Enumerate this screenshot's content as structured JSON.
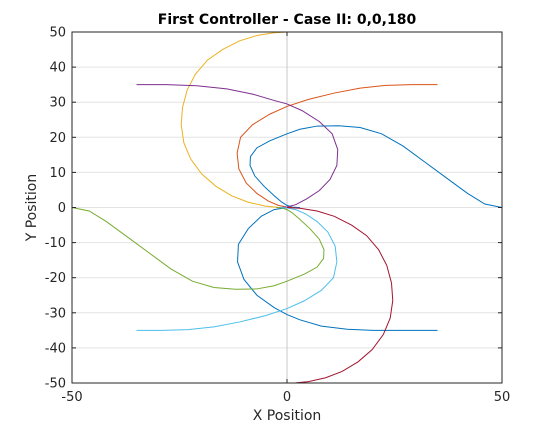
{
  "chart_data": {
    "type": "line",
    "title": "First Controller - Case II: 0,0,180",
    "xlabel": "X Position",
    "ylabel": "Y Position",
    "xlim": [
      -50,
      50
    ],
    "ylim": [
      -50,
      50
    ],
    "xticks": [
      -50,
      0,
      50
    ],
    "yticks": [
      -50,
      -40,
      -30,
      -20,
      -10,
      0,
      10,
      20,
      30,
      40,
      50
    ],
    "grid": true,
    "colors": {
      "blue": "#0072bd",
      "orange": "#d95319",
      "yellow": "#edb120",
      "purple": "#7e2f8e",
      "green": "#77ac30",
      "cyan": "#4dbeee",
      "maroon": "#a2142f"
    },
    "series": [
      {
        "color": "#0072bd",
        "points": [
          [
            50,
            0
          ],
          [
            46,
            1
          ],
          [
            42,
            4
          ],
          [
            37,
            8.5
          ],
          [
            32,
            13
          ],
          [
            27,
            17.5
          ],
          [
            22,
            21
          ],
          [
            17,
            22.8
          ],
          [
            12,
            23.3
          ],
          [
            7,
            23.2
          ],
          [
            3,
            22.3
          ],
          [
            0,
            21
          ],
          [
            -4,
            19
          ],
          [
            -7,
            17
          ],
          [
            -8.5,
            14.5
          ],
          [
            -8.6,
            12
          ],
          [
            -7.5,
            9
          ],
          [
            -5.3,
            6
          ],
          [
            -3,
            3.4
          ],
          [
            -1.2,
            1.5
          ],
          [
            0,
            0.6
          ],
          [
            1.2,
            0.1
          ],
          [
            2.5,
            0
          ]
        ]
      },
      {
        "color": "#0072bd",
        "points": [
          [
            3,
            0
          ],
          [
            0,
            0
          ],
          [
            -3,
            -0.6
          ],
          [
            -6,
            -2.5
          ],
          [
            -9,
            -6
          ],
          [
            -11.3,
            -10.5
          ],
          [
            -11.5,
            -15.5
          ],
          [
            -10,
            -20.5
          ],
          [
            -7,
            -25
          ],
          [
            -3,
            -28.5
          ],
          [
            0,
            -30.5
          ],
          [
            3,
            -32
          ],
          [
            8,
            -33.8
          ],
          [
            14,
            -34.7
          ],
          [
            20,
            -35
          ],
          [
            27,
            -35
          ],
          [
            35,
            -35
          ]
        ]
      },
      {
        "color": "#d95319",
        "points": [
          [
            35,
            35
          ],
          [
            29,
            35
          ],
          [
            23,
            34.8
          ],
          [
            17,
            34
          ],
          [
            11,
            32.6
          ],
          [
            5,
            30.8
          ],
          [
            0,
            28.8
          ],
          [
            -4,
            26.6
          ],
          [
            -8,
            23.6
          ],
          [
            -10.8,
            20
          ],
          [
            -11.6,
            15.5
          ],
          [
            -11.2,
            11
          ],
          [
            -9.5,
            7
          ],
          [
            -7,
            4
          ],
          [
            -4.3,
            1.8
          ],
          [
            -2,
            0.6
          ],
          [
            0,
            0.1
          ],
          [
            1.5,
            0
          ]
        ]
      },
      {
        "color": "#edb120",
        "points": [
          [
            0,
            50
          ],
          [
            -3,
            49.8
          ],
          [
            -7,
            49
          ],
          [
            -11,
            47.5
          ],
          [
            -15,
            45
          ],
          [
            -18.5,
            42
          ],
          [
            -21.3,
            38
          ],
          [
            -23.2,
            33.5
          ],
          [
            -24.3,
            28.5
          ],
          [
            -24.6,
            23.5
          ],
          [
            -24,
            18.5
          ],
          [
            -22.4,
            13.8
          ],
          [
            -19.8,
            9.5
          ],
          [
            -16.5,
            6
          ],
          [
            -12.8,
            3.3
          ],
          [
            -9,
            1.5
          ],
          [
            -5,
            0.4
          ],
          [
            -2,
            0.05
          ],
          [
            0,
            0
          ]
        ]
      },
      {
        "color": "#7e2f8e",
        "points": [
          [
            -35,
            35
          ],
          [
            -28,
            35
          ],
          [
            -21,
            34.7
          ],
          [
            -14,
            33.8
          ],
          [
            -8,
            32.3
          ],
          [
            -3,
            30.5
          ],
          [
            0,
            29.5
          ],
          [
            3.5,
            27.6
          ],
          [
            7.5,
            24.5
          ],
          [
            10.5,
            21
          ],
          [
            11.8,
            16.5
          ],
          [
            11.6,
            12
          ],
          [
            10,
            8
          ],
          [
            7.5,
            4.8
          ],
          [
            4.5,
            2.4
          ],
          [
            2,
            0.8
          ],
          [
            0,
            0.15
          ],
          [
            -1.5,
            0
          ]
        ]
      },
      {
        "color": "#77ac30",
        "points": [
          [
            -50,
            0
          ],
          [
            -46,
            -1
          ],
          [
            -42,
            -4
          ],
          [
            -37,
            -8.5
          ],
          [
            -32,
            -13
          ],
          [
            -27,
            -17.5
          ],
          [
            -22,
            -21
          ],
          [
            -17,
            -22.8
          ],
          [
            -12,
            -23.3
          ],
          [
            -7,
            -23.2
          ],
          [
            -3,
            -22.3
          ],
          [
            0,
            -21
          ],
          [
            4,
            -19
          ],
          [
            7,
            -17
          ],
          [
            8.5,
            -14.5
          ],
          [
            8.6,
            -12
          ],
          [
            7.5,
            -9
          ],
          [
            5.3,
            -6
          ],
          [
            3,
            -3.4
          ],
          [
            1.2,
            -1.5
          ],
          [
            0,
            -0.6
          ],
          [
            -1.2,
            -0.1
          ],
          [
            -2.5,
            0
          ]
        ]
      },
      {
        "color": "#4dbeee",
        "points": [
          [
            -35,
            -35
          ],
          [
            -29,
            -35
          ],
          [
            -23,
            -34.8
          ],
          [
            -17,
            -34
          ],
          [
            -11,
            -32.6
          ],
          [
            -5,
            -30.8
          ],
          [
            0,
            -28.8
          ],
          [
            4,
            -26.6
          ],
          [
            8,
            -23.6
          ],
          [
            10.8,
            -20
          ],
          [
            11.6,
            -15.5
          ],
          [
            11.2,
            -11
          ],
          [
            9.5,
            -7
          ],
          [
            7,
            -4
          ],
          [
            4.3,
            -1.8
          ],
          [
            2,
            -0.6
          ],
          [
            0,
            -0.1
          ],
          [
            -1.5,
            0
          ]
        ]
      },
      {
        "color": "#a2142f",
        "points": [
          [
            0,
            0
          ],
          [
            3,
            -0.2
          ],
          [
            7,
            -1
          ],
          [
            11,
            -2.5
          ],
          [
            15,
            -5
          ],
          [
            18.5,
            -8
          ],
          [
            21.3,
            -12
          ],
          [
            23.2,
            -16.5
          ],
          [
            24.3,
            -21.5
          ],
          [
            24.6,
            -26.5
          ],
          [
            24,
            -31.5
          ],
          [
            22.4,
            -36.2
          ],
          [
            19.8,
            -40.5
          ],
          [
            16.5,
            -44
          ],
          [
            12.8,
            -46.7
          ],
          [
            9,
            -48.5
          ],
          [
            5,
            -49.6
          ],
          [
            2,
            -49.95
          ],
          [
            0,
            -50
          ]
        ]
      }
    ]
  }
}
